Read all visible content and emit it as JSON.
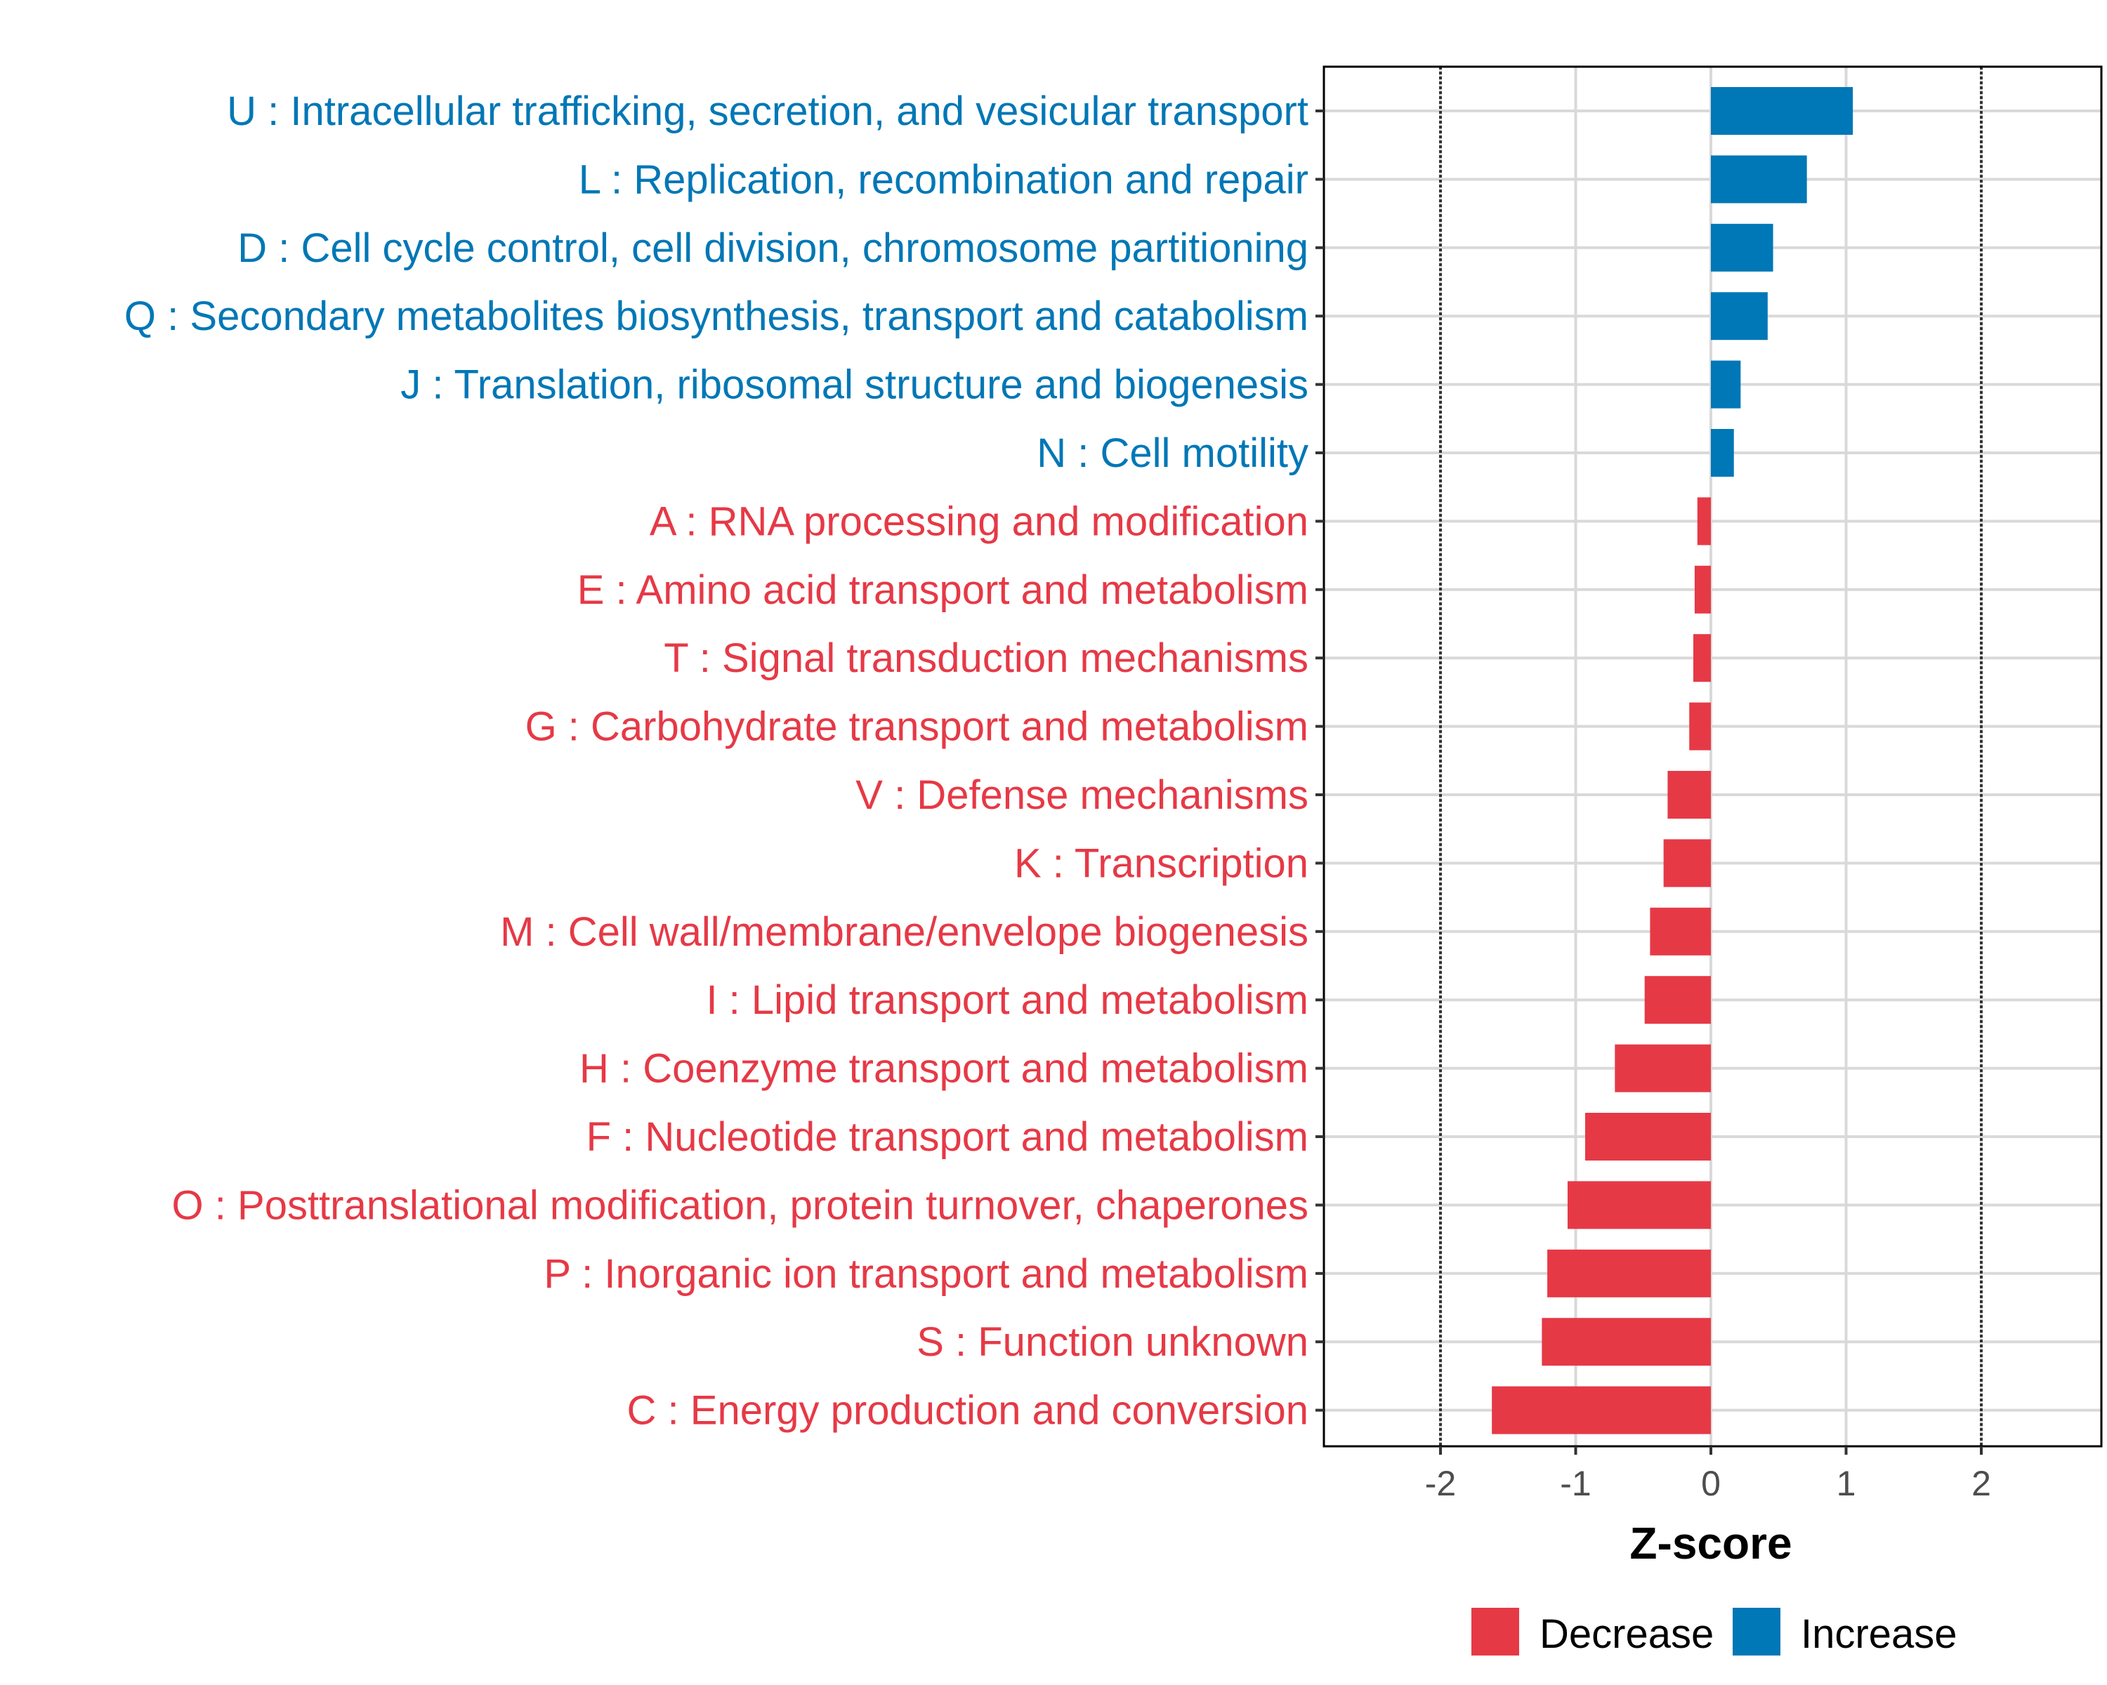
{
  "chart_data": {
    "type": "bar",
    "orientation": "horizontal",
    "xlabel": "Z-score",
    "xlim": [
      -2.87,
      2.87
    ],
    "xticks": [
      -2,
      -1,
      0,
      1,
      2
    ],
    "xtick_labels": [
      "-2",
      "-1",
      "0",
      "1",
      "2"
    ],
    "reference_lines": [
      -2,
      2
    ],
    "grid": true,
    "legend_placement": "bottom",
    "colors": {
      "Decrease": "#e63946",
      "Increase": "#0077b6"
    },
    "legend": [
      {
        "name": "Decrease",
        "color": "#e63946"
      },
      {
        "name": "Increase",
        "color": "#0077b6"
      }
    ],
    "categories": [
      {
        "label": "U : Intracellular trafficking, secretion, and vesicular transport",
        "value": 1.05,
        "group": "Increase"
      },
      {
        "label": "L : Replication, recombination and repair",
        "value": 0.71,
        "group": "Increase"
      },
      {
        "label": "D : Cell cycle control, cell division, chromosome partitioning",
        "value": 0.46,
        "group": "Increase"
      },
      {
        "label": "Q : Secondary metabolites biosynthesis, transport and catabolism",
        "value": 0.42,
        "group": "Increase"
      },
      {
        "label": "J : Translation, ribosomal structure and biogenesis",
        "value": 0.22,
        "group": "Increase"
      },
      {
        "label": "N : Cell motility",
        "value": 0.17,
        "group": "Increase"
      },
      {
        "label": "A : RNA processing and modification",
        "value": -0.1,
        "group": "Decrease"
      },
      {
        "label": "E : Amino acid transport and metabolism",
        "value": -0.12,
        "group": "Decrease"
      },
      {
        "label": "T : Signal transduction mechanisms",
        "value": -0.13,
        "group": "Decrease"
      },
      {
        "label": "G : Carbohydrate transport and metabolism",
        "value": -0.16,
        "group": "Decrease"
      },
      {
        "label": "V : Defense mechanisms",
        "value": -0.32,
        "group": "Decrease"
      },
      {
        "label": "K : Transcription",
        "value": -0.35,
        "group": "Decrease"
      },
      {
        "label": "M : Cell wall/membrane/envelope biogenesis",
        "value": -0.45,
        "group": "Decrease"
      },
      {
        "label": "I : Lipid transport and metabolism",
        "value": -0.49,
        "group": "Decrease"
      },
      {
        "label": "H : Coenzyme transport and metabolism",
        "value": -0.71,
        "group": "Decrease"
      },
      {
        "label": "F : Nucleotide transport and metabolism",
        "value": -0.93,
        "group": "Decrease"
      },
      {
        "label": "O : Posttranslational modification, protein turnover, chaperones",
        "value": -1.06,
        "group": "Decrease"
      },
      {
        "label": "P : Inorganic ion transport and metabolism",
        "value": -1.21,
        "group": "Decrease"
      },
      {
        "label": "S : Function unknown",
        "value": -1.25,
        "group": "Decrease"
      },
      {
        "label": "C : Energy production and conversion",
        "value": -1.62,
        "group": "Decrease"
      }
    ]
  }
}
